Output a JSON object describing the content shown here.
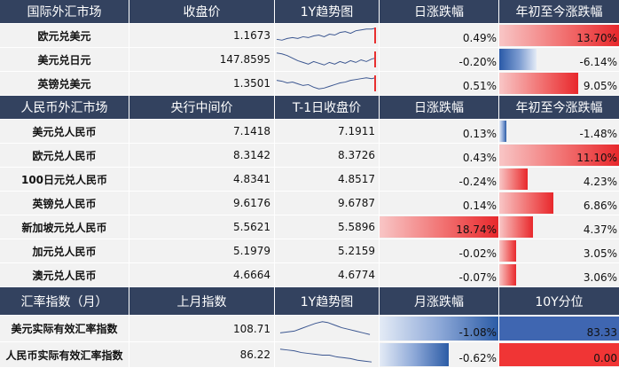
{
  "colors": {
    "header_bg": "#33425f",
    "cell_bg": "#f2f2f2",
    "positive": "#e8282c",
    "negative": "#2c5ca6"
  },
  "sections": [
    {
      "headers": [
        "国际外汇市场",
        "收盘价",
        "1Y趋势图",
        "日涨跌幅",
        "年初至今涨跌幅"
      ],
      "rows": [
        {
          "name": "欧元兑美元",
          "close": "1.1673",
          "day": "0.49%",
          "ytd": "13.70%",
          "day_val": 0.49,
          "ytd_val": 13.7
        },
        {
          "name": "美元兑日元",
          "close": "147.8595",
          "day": "-0.20%",
          "ytd": "-6.14%",
          "day_val": -0.2,
          "ytd_val": -6.14
        },
        {
          "name": "英镑兑美元",
          "close": "1.3501",
          "day": "0.51%",
          "ytd": "9.05%",
          "day_val": 0.51,
          "ytd_val": 9.05
        }
      ]
    },
    {
      "headers": [
        "人民币外汇市场",
        "央行中间价",
        "T-1日收盘价",
        "日涨跌幅",
        "年初至今涨跌幅"
      ],
      "rows": [
        {
          "name": "美元兑人民币",
          "mid": "7.1418",
          "prev": "7.1911",
          "day": "0.13%",
          "ytd": "-1.48%",
          "day_val": 0.13,
          "ytd_val": -1.48
        },
        {
          "name": "欧元兑人民币",
          "mid": "8.3142",
          "prev": "8.3726",
          "day": "0.43%",
          "ytd": "11.10%",
          "day_val": 0.43,
          "ytd_val": 11.1
        },
        {
          "name": "100日元兑人民币",
          "mid": "4.8341",
          "prev": "4.8517",
          "day": "-0.24%",
          "ytd": "4.23%",
          "day_val": -0.24,
          "ytd_val": 4.23
        },
        {
          "name": "英镑兑人民币",
          "mid": "9.6176",
          "prev": "9.6787",
          "day": "0.14%",
          "ytd": "6.86%",
          "day_val": 0.14,
          "ytd_val": 6.86
        },
        {
          "name": "新加坡元兑人民币",
          "mid": "5.5621",
          "prev": "5.5896",
          "day": "18.74%",
          "ytd": "4.37%",
          "day_val": 18.74,
          "ytd_val": 4.37
        },
        {
          "name": "加元兑人民币",
          "mid": "5.1979",
          "prev": "5.2159",
          "day": "-0.02%",
          "ytd": "3.05%",
          "day_val": -0.02,
          "ytd_val": 3.05
        },
        {
          "name": "澳元兑人民币",
          "mid": "4.6664",
          "prev": "4.6774",
          "day": "-0.07%",
          "ytd": "3.06%",
          "day_val": -0.07,
          "ytd_val": 3.06
        }
      ]
    },
    {
      "headers": [
        "汇率指数（月）",
        "上月指数",
        "1Y趋势图",
        "月涨跌幅",
        "10Y分位"
      ],
      "rows": [
        {
          "name": "美元实际有效汇率指数",
          "last": "108.71",
          "mon": "-1.08%",
          "pct": "83.33",
          "mon_val": -1.08,
          "pct_val": 83.33
        },
        {
          "name": "人民币实际有效汇率指数",
          "last": "86.22",
          "mon": "-0.62%",
          "pct": "0.00",
          "mon_val": -0.62,
          "pct_val": 0.0
        }
      ]
    }
  ]
}
